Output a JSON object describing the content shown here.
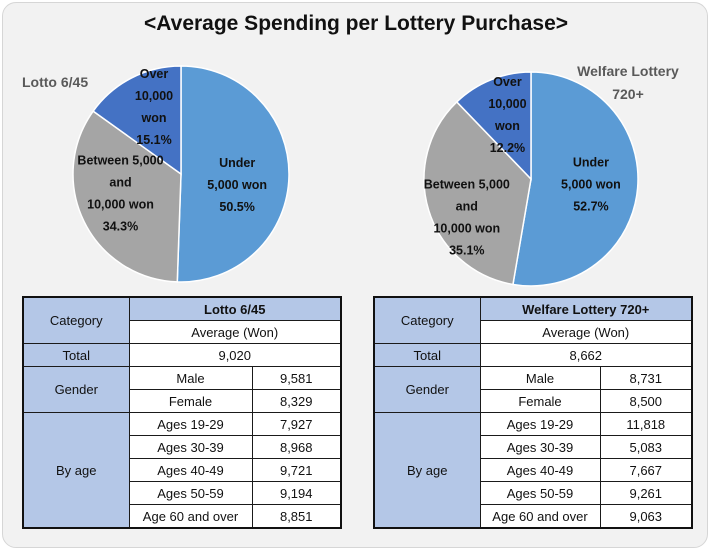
{
  "title": "<Average Spending per Lottery Purchase>",
  "chart_data": [
    {
      "type": "pie",
      "title": "Lotto 6/45",
      "slices": [
        {
          "label_lines": [
            "Under",
            "5,000 won",
            "50.5%"
          ],
          "value": 50.5,
          "color": "#5b9bd5"
        },
        {
          "label_lines": [
            "Between 5,000",
            "and",
            "10,000 won",
            "34.3%"
          ],
          "value": 34.3,
          "color": "#a5a5a5"
        },
        {
          "label_lines": [
            "Over",
            "10,000",
            "won",
            "15.1%"
          ],
          "value": 15.1,
          "color": "#4472c4"
        }
      ]
    },
    {
      "type": "pie",
      "title": "Welfare Lottery 720+",
      "slices": [
        {
          "label_lines": [
            "Under",
            "5,000 won",
            "52.7%"
          ],
          "value": 52.7,
          "color": "#5b9bd5"
        },
        {
          "label_lines": [
            "Between 5,000",
            "and",
            "10,000 won",
            "35.1%"
          ],
          "value": 35.1,
          "color": "#a5a5a5"
        },
        {
          "label_lines": [
            "Over",
            "10,000",
            "won",
            "12.2%"
          ],
          "value": 12.2,
          "color": "#4472c4"
        }
      ]
    }
  ],
  "tables": [
    {
      "name": "Lotto 6/45",
      "category_label": "Category",
      "average_label": "Average (Won)",
      "total_label": "Total",
      "total_value": "9,020",
      "gender_label": "Gender",
      "gender_rows": [
        [
          "Male",
          "9,581"
        ],
        [
          "Female",
          "8,329"
        ]
      ],
      "age_label": "By age",
      "age_rows": [
        [
          "Ages 19-29",
          "7,927"
        ],
        [
          "Ages 30-39",
          "8,968"
        ],
        [
          "Ages 40-49",
          "9,721"
        ],
        [
          "Ages 50-59",
          "9,194"
        ],
        [
          "Age 60 and over",
          "8,851"
        ]
      ]
    },
    {
      "name": "Welfare Lottery 720+",
      "category_label": "Category",
      "average_label": "Average (Won)",
      "total_label": "Total",
      "total_value": "8,662",
      "gender_label": "Gender",
      "gender_rows": [
        [
          "Male",
          "8,731"
        ],
        [
          "Female",
          "8,500"
        ]
      ],
      "age_label": "By age",
      "age_rows": [
        [
          "Ages 19-29",
          "11,818"
        ],
        [
          "Ages 30-39",
          "5,083"
        ],
        [
          "Ages 40-49",
          "7,667"
        ],
        [
          "Ages 50-59",
          "9,261"
        ],
        [
          "Age 60 and over",
          "9,063"
        ]
      ]
    }
  ]
}
